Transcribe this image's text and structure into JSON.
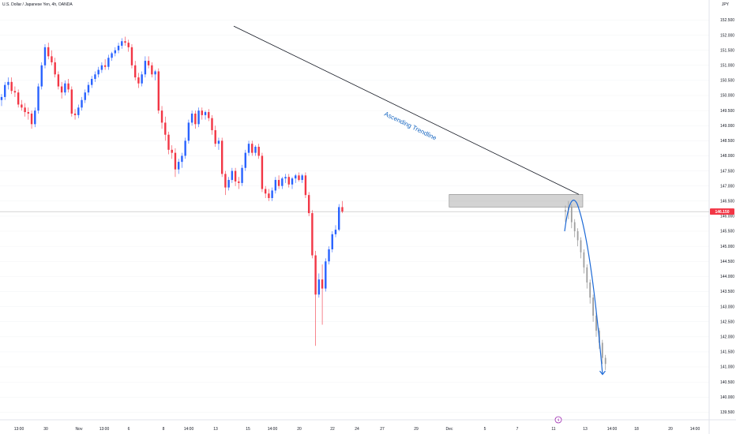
{
  "header": {
    "symbol_title": "U.S. Dollar / Japanese Yen, 4h, OANDA",
    "currency": "JPY"
  },
  "chart_data": {
    "type": "candlestick",
    "title": "U.S. Dollar / Japanese Yen, 4h, OANDA",
    "ylim": [
      139.3,
      152.8
    ],
    "y_ticks": [
      "152.500",
      "152.000",
      "151.500",
      "151.000",
      "150.500",
      "150.000",
      "149.500",
      "149.000",
      "148.500",
      "148.000",
      "147.500",
      "147.000",
      "146.500",
      "146.000",
      "145.500",
      "145.000",
      "144.500",
      "144.000",
      "143.500",
      "143.000",
      "142.500",
      "142.000",
      "141.500",
      "141.000",
      "140.500",
      "140.000",
      "139.500"
    ],
    "x_ticks": [
      "13:00",
      "30",
      "Nov",
      "13:00",
      "6",
      "8",
      "14:00",
      "13",
      "15",
      "14:00",
      "20",
      "22",
      "24",
      "27",
      "29",
      "Dec",
      "5",
      "7",
      "11",
      "13",
      "14:00",
      "18",
      "20",
      "14:00"
    ],
    "current_price": "146.150",
    "colors": {
      "up": "#2962ff",
      "down": "#f23645",
      "projection": "#9e9e9e",
      "trendline": "#131722",
      "curve": "#1e6ad6"
    },
    "ohlc": [
      [
        149.85,
        150.05,
        149.65,
        149.95
      ],
      [
        149.95,
        150.45,
        149.85,
        150.35
      ],
      [
        150.35,
        150.6,
        150.2,
        150.45
      ],
      [
        150.45,
        150.6,
        150.05,
        150.15
      ],
      [
        150.15,
        150.3,
        149.95,
        150.1
      ],
      [
        150.1,
        150.2,
        149.6,
        149.7
      ],
      [
        149.7,
        149.85,
        149.5,
        149.6
      ],
      [
        149.6,
        149.75,
        149.3,
        149.45
      ],
      [
        149.45,
        149.6,
        149.2,
        149.4
      ],
      [
        149.4,
        149.5,
        148.9,
        149.05
      ],
      [
        149.05,
        149.6,
        148.95,
        149.5
      ],
      [
        149.5,
        150.4,
        149.4,
        150.3
      ],
      [
        150.3,
        151.1,
        150.2,
        151.0
      ],
      [
        151.0,
        151.7,
        150.9,
        151.6
      ],
      [
        151.6,
        151.75,
        151.2,
        151.3
      ],
      [
        151.3,
        151.5,
        151.0,
        151.1
      ],
      [
        151.1,
        151.25,
        150.6,
        150.7
      ],
      [
        150.7,
        150.8,
        150.2,
        150.3
      ],
      [
        150.3,
        150.45,
        149.9,
        150.1
      ],
      [
        150.1,
        150.5,
        150.0,
        150.4
      ],
      [
        150.4,
        150.55,
        150.1,
        150.2
      ],
      [
        150.2,
        150.3,
        149.3,
        149.4
      ],
      [
        149.4,
        149.55,
        149.2,
        149.35
      ],
      [
        149.35,
        149.7,
        149.25,
        149.6
      ],
      [
        149.6,
        149.95,
        149.5,
        149.85
      ],
      [
        149.85,
        150.2,
        149.75,
        150.1
      ],
      [
        150.1,
        150.45,
        150.0,
        150.35
      ],
      [
        150.35,
        150.65,
        150.25,
        150.55
      ],
      [
        150.55,
        150.8,
        150.45,
        150.7
      ],
      [
        150.7,
        150.95,
        150.6,
        150.85
      ],
      [
        150.85,
        151.1,
        150.75,
        151.0
      ],
      [
        151.0,
        151.2,
        150.85,
        150.95
      ],
      [
        150.95,
        151.35,
        150.85,
        151.25
      ],
      [
        151.25,
        151.45,
        151.15,
        151.4
      ],
      [
        151.4,
        151.6,
        151.3,
        151.5
      ],
      [
        151.5,
        151.75,
        151.4,
        151.65
      ],
      [
        151.65,
        151.9,
        151.55,
        151.8
      ],
      [
        151.8,
        151.95,
        151.65,
        151.75
      ],
      [
        151.75,
        151.85,
        151.45,
        151.6
      ],
      [
        151.6,
        151.7,
        150.9,
        151.0
      ],
      [
        151.0,
        151.15,
        150.5,
        150.6
      ],
      [
        150.6,
        150.75,
        150.25,
        150.4
      ],
      [
        150.4,
        150.8,
        150.3,
        150.7
      ],
      [
        150.7,
        151.3,
        150.6,
        151.15
      ],
      [
        151.15,
        151.3,
        150.9,
        151.0
      ],
      [
        151.0,
        151.1,
        150.6,
        150.7
      ],
      [
        150.7,
        150.85,
        150.5,
        150.8
      ],
      [
        150.8,
        150.9,
        149.4,
        149.5
      ],
      [
        149.5,
        149.65,
        148.9,
        149.1
      ],
      [
        149.1,
        149.3,
        148.5,
        148.7
      ],
      [
        148.7,
        148.8,
        148.05,
        148.2
      ],
      [
        148.2,
        148.35,
        147.9,
        148.1
      ],
      [
        148.1,
        148.25,
        147.3,
        147.55
      ],
      [
        147.55,
        147.9,
        147.4,
        147.8
      ],
      [
        147.8,
        148.1,
        147.6,
        148.0
      ],
      [
        148.0,
        148.6,
        147.9,
        148.5
      ],
      [
        148.5,
        149.2,
        148.4,
        149.1
      ],
      [
        149.1,
        149.5,
        149.0,
        149.4
      ],
      [
        149.4,
        149.5,
        148.9,
        149.05
      ],
      [
        149.05,
        149.6,
        148.95,
        149.5
      ],
      [
        149.5,
        149.6,
        149.2,
        149.35
      ],
      [
        149.35,
        149.5,
        149.2,
        149.45
      ],
      [
        149.45,
        149.55,
        149.15,
        149.25
      ],
      [
        149.25,
        149.35,
        148.7,
        148.85
      ],
      [
        148.85,
        149.0,
        148.3,
        148.4
      ],
      [
        148.4,
        148.6,
        148.2,
        148.5
      ],
      [
        148.5,
        148.6,
        147.3,
        147.4
      ],
      [
        147.4,
        147.5,
        146.7,
        146.95
      ],
      [
        146.95,
        147.3,
        146.85,
        147.2
      ],
      [
        147.2,
        147.6,
        147.1,
        147.5
      ],
      [
        147.5,
        147.6,
        147.0,
        147.15
      ],
      [
        147.15,
        147.3,
        146.9,
        147.1
      ],
      [
        147.1,
        147.7,
        147.0,
        147.6
      ],
      [
        147.6,
        148.2,
        147.5,
        148.1
      ],
      [
        148.1,
        148.5,
        148.0,
        148.4
      ],
      [
        148.4,
        148.5,
        148.0,
        148.1
      ],
      [
        148.1,
        148.35,
        148.0,
        148.3
      ],
      [
        148.3,
        148.4,
        147.9,
        148.0
      ],
      [
        148.0,
        148.1,
        146.8,
        146.9
      ],
      [
        146.9,
        147.0,
        146.6,
        146.75
      ],
      [
        146.75,
        146.9,
        146.5,
        146.6
      ],
      [
        146.6,
        146.95,
        146.5,
        146.85
      ],
      [
        146.85,
        147.3,
        146.75,
        147.2
      ],
      [
        147.2,
        147.35,
        146.9,
        147.0
      ],
      [
        147.0,
        147.3,
        146.9,
        147.25
      ],
      [
        147.25,
        147.4,
        147.1,
        147.3
      ],
      [
        147.3,
        147.4,
        146.95,
        147.05
      ],
      [
        147.05,
        147.3,
        146.9,
        147.25
      ],
      [
        147.25,
        147.4,
        147.1,
        147.35
      ],
      [
        147.35,
        147.45,
        147.15,
        147.2
      ],
      [
        147.2,
        147.4,
        147.1,
        147.35
      ],
      [
        147.35,
        147.45,
        146.6,
        146.7
      ],
      [
        146.7,
        146.8,
        146.0,
        146.1
      ],
      [
        146.1,
        146.2,
        144.6,
        144.7
      ],
      [
        144.7,
        144.85,
        141.7,
        143.4
      ],
      [
        143.4,
        144.1,
        143.3,
        143.9
      ],
      [
        143.9,
        144.4,
        142.4,
        143.6
      ],
      [
        143.6,
        144.6,
        143.5,
        144.5
      ],
      [
        144.5,
        145.0,
        144.4,
        144.9
      ],
      [
        144.9,
        145.5,
        144.8,
        145.4
      ],
      [
        145.4,
        145.7,
        145.3,
        145.55
      ],
      [
        145.55,
        146.4,
        145.5,
        146.3
      ],
      [
        146.3,
        146.5,
        146.1,
        146.15
      ]
    ],
    "projection_ohlc": [
      [
        146.15,
        146.35,
        145.8,
        146.2
      ],
      [
        146.2,
        146.5,
        145.9,
        146.3
      ],
      [
        146.3,
        146.4,
        145.6,
        145.8
      ],
      [
        145.8,
        145.9,
        145.3,
        145.5
      ],
      [
        145.5,
        145.6,
        145.0,
        145.2
      ],
      [
        145.2,
        145.3,
        144.6,
        144.8
      ],
      [
        144.8,
        144.9,
        144.1,
        144.3
      ],
      [
        144.3,
        144.4,
        143.6,
        143.8
      ],
      [
        143.8,
        143.9,
        143.1,
        143.3
      ],
      [
        143.3,
        143.4,
        142.5,
        142.7
      ],
      [
        142.7,
        142.8,
        142.0,
        142.2
      ],
      [
        142.2,
        142.3,
        141.6,
        141.8
      ],
      [
        141.8,
        141.9,
        141.1,
        141.3
      ],
      [
        141.3,
        141.4,
        140.9,
        141.1
      ]
    ],
    "zone": {
      "top": 146.72,
      "bottom": 146.3
    },
    "trendline": {
      "from": [
        63,
        152.3
      ],
      "to": [
        156,
        146.72
      ]
    },
    "annotation": "Ascending Trendline"
  }
}
